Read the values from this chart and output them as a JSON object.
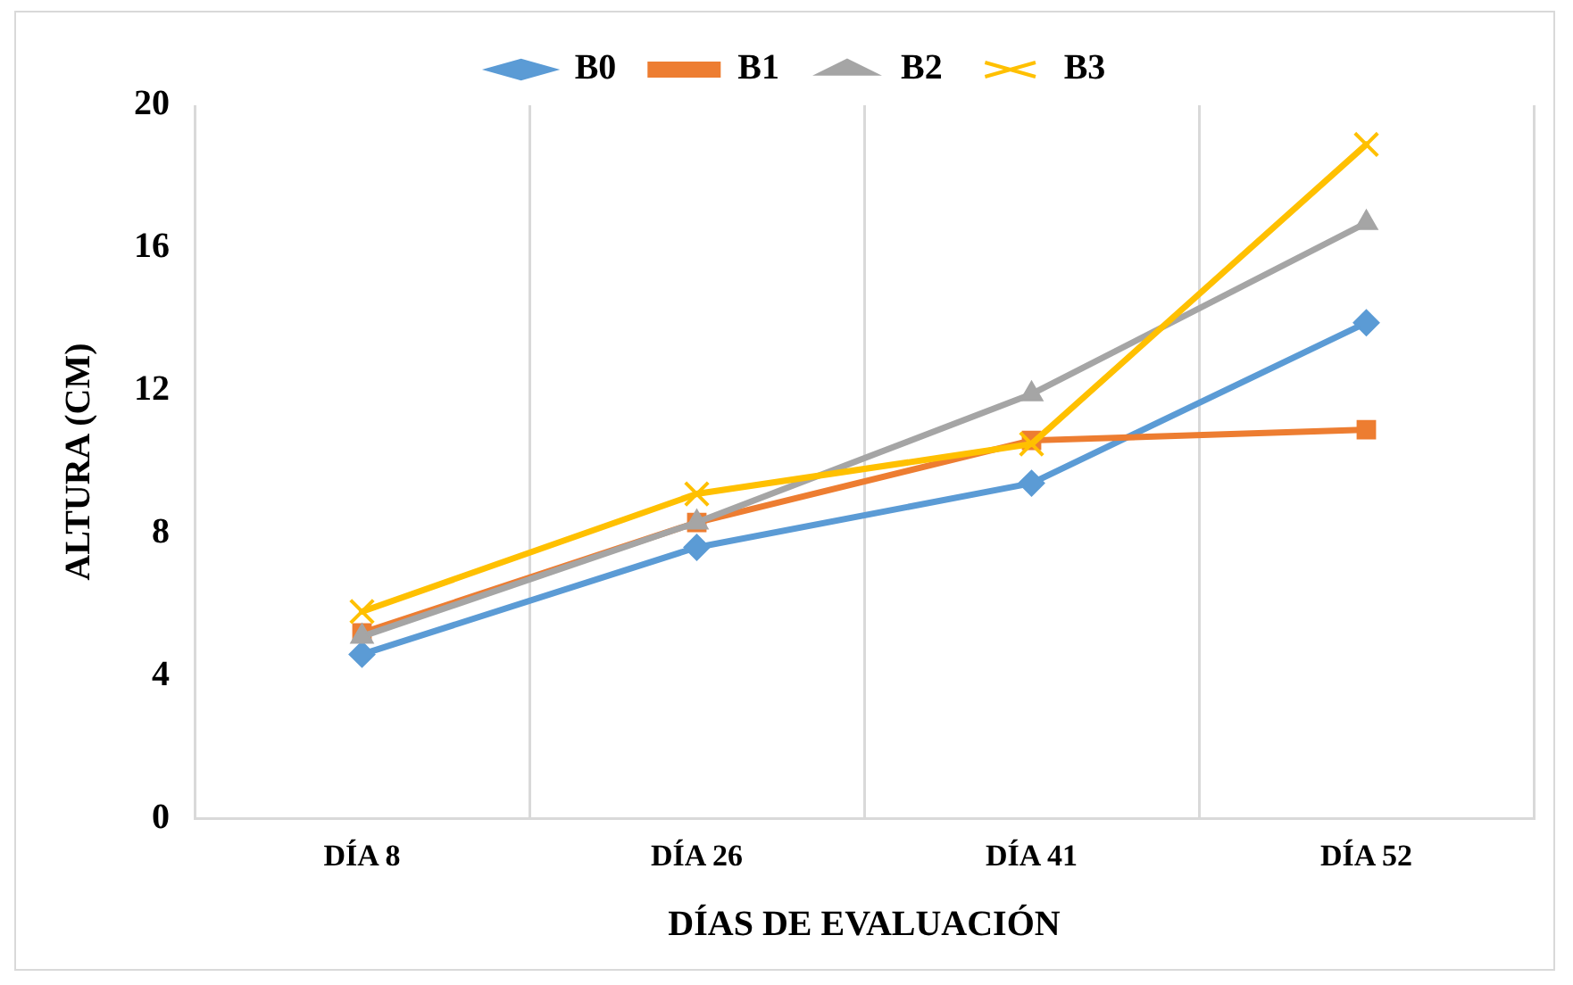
{
  "chart_data": {
    "type": "line",
    "xlabel": "DÍAS DE EVALUACIÓN",
    "ylabel": "ALTURA (CM)",
    "categories": [
      "DÍA 8",
      "DÍA 26",
      "DÍA 41",
      "DÍA 52"
    ],
    "series": [
      {
        "name": "B0",
        "color": "#5b9bd5",
        "marker": "diamond",
        "values": [
          4.6,
          7.6,
          9.4,
          13.9
        ]
      },
      {
        "name": "B1",
        "color": "#ed7d31",
        "marker": "square",
        "values": [
          5.2,
          8.3,
          10.6,
          10.9
        ]
      },
      {
        "name": "B2",
        "color": "#a5a5a5",
        "marker": "triangle",
        "values": [
          5.1,
          8.3,
          11.9,
          16.7
        ]
      },
      {
        "name": "B3",
        "color": "#ffc000",
        "marker": "cross",
        "values": [
          5.8,
          9.1,
          10.5,
          18.9
        ]
      }
    ],
    "ylim": [
      0,
      20
    ],
    "yticks": [
      0,
      4,
      8,
      12,
      16,
      20
    ],
    "grid": "x",
    "legend": "top",
    "line_style": "solid"
  }
}
